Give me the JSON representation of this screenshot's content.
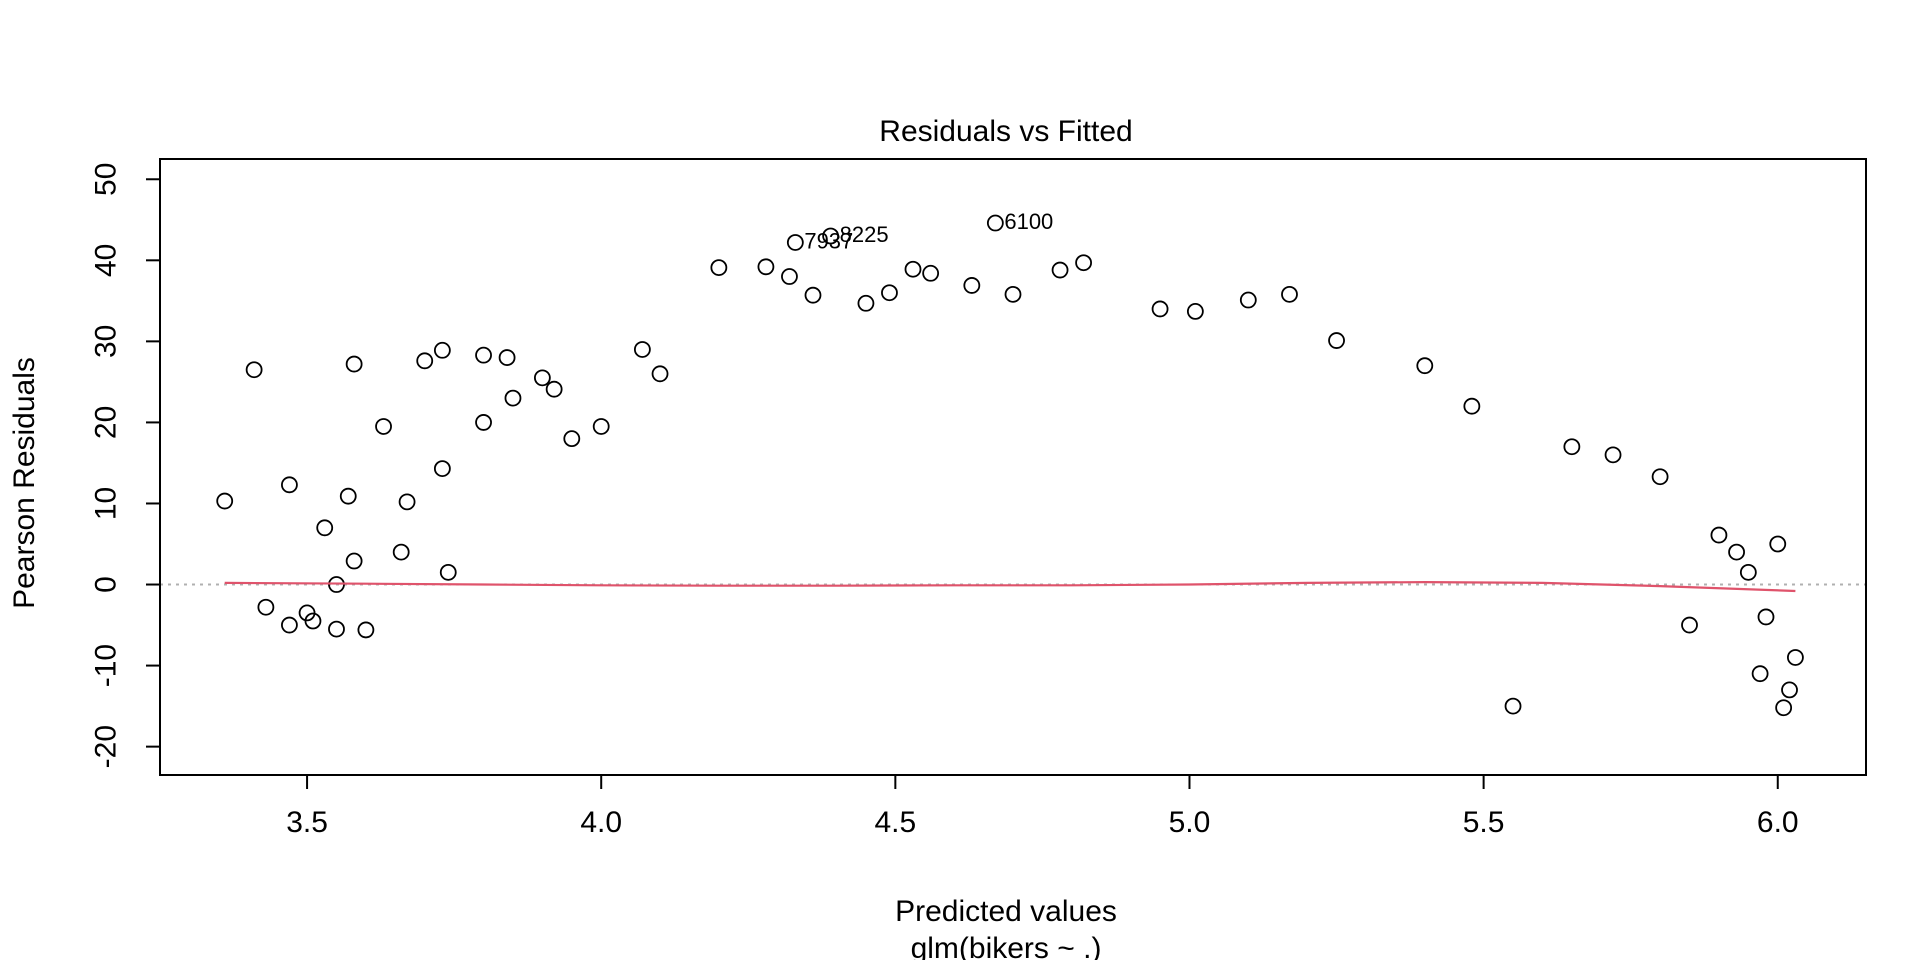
{
  "chart_data": {
    "type": "scatter",
    "title": "Residuals vs Fitted",
    "xlabel": "Predicted values",
    "sublabel": "glm(bikers ~ .)",
    "ylabel": "Pearson Residuals",
    "xlim": [
      3.25,
      6.15
    ],
    "ylim": [
      -23.5,
      52.5
    ],
    "xticks": [
      3.5,
      4.0,
      4.5,
      5.0,
      5.5,
      6.0
    ],
    "xtick_labels": [
      "3.5",
      "4.0",
      "4.5",
      "5.0",
      "5.5",
      "6.0"
    ],
    "yticks": [
      -20,
      -10,
      0,
      10,
      20,
      30,
      40,
      50
    ],
    "ytick_labels": [
      "-20",
      "-10",
      "0",
      "10",
      "20",
      "30",
      "40",
      "50"
    ],
    "reference_line": {
      "y": 0,
      "style": "dotted",
      "color": "#b0b0b0"
    },
    "point_color": "#000000",
    "smooth_color": "#df536b",
    "grid": false,
    "legend": "none",
    "labeled_points": [
      {
        "label": "6100",
        "x": 4.67,
        "y": 44.6
      },
      {
        "label": "8225",
        "x": 4.39,
        "y": 43.0
      },
      {
        "label": "7937",
        "x": 4.33,
        "y": 42.2
      }
    ],
    "smooth": {
      "x": [
        3.36,
        3.6,
        3.8,
        4.0,
        4.2,
        4.4,
        4.6,
        4.8,
        5.0,
        5.2,
        5.4,
        5.6,
        5.8,
        6.03
      ],
      "y": [
        0.2,
        0.1,
        0.0,
        -0.1,
        -0.15,
        -0.15,
        -0.1,
        -0.1,
        0.0,
        0.2,
        0.3,
        0.2,
        -0.2,
        -0.8
      ]
    },
    "points": {
      "x": [
        3.36,
        3.41,
        3.43,
        3.47,
        3.47,
        3.5,
        3.51,
        3.53,
        3.55,
        3.55,
        3.57,
        3.58,
        3.58,
        3.6,
        3.63,
        3.66,
        3.67,
        3.7,
        3.73,
        3.73,
        3.74,
        3.8,
        3.8,
        3.84,
        3.85,
        3.9,
        3.92,
        3.95,
        4.0,
        4.07,
        4.1,
        4.2,
        4.28,
        4.32,
        4.36,
        4.45,
        4.49,
        4.53,
        4.56,
        4.63,
        4.7,
        4.78,
        4.82,
        4.95,
        5.01,
        5.1,
        5.17,
        5.25,
        5.4,
        5.48,
        5.55,
        5.65,
        5.72,
        5.8,
        5.85,
        5.9,
        5.93,
        5.95,
        5.97,
        5.98,
        6.0,
        6.01,
        6.02,
        6.03
      ],
      "y": [
        10.3,
        26.5,
        -2.8,
        12.3,
        -5.0,
        -3.5,
        -4.5,
        7.0,
        0.0,
        -5.5,
        10.9,
        27.2,
        2.9,
        -5.6,
        19.5,
        4.0,
        10.2,
        27.6,
        28.9,
        14.3,
        1.5,
        28.3,
        20.0,
        28.0,
        23.0,
        25.5,
        24.1,
        18.0,
        19.5,
        29.0,
        26.0,
        39.1,
        39.2,
        38.0,
        35.7,
        34.7,
        36.0,
        38.9,
        38.4,
        36.9,
        35.8,
        38.8,
        39.7,
        34.0,
        33.7,
        35.1,
        35.8,
        30.1,
        27.0,
        22.0,
        -15.0,
        17.0,
        16.0,
        13.3,
        -5.0,
        6.1,
        4.0,
        1.5,
        -11.0,
        -4.0,
        5.0,
        -15.2,
        -13.0,
        -9.0
      ]
    }
  }
}
